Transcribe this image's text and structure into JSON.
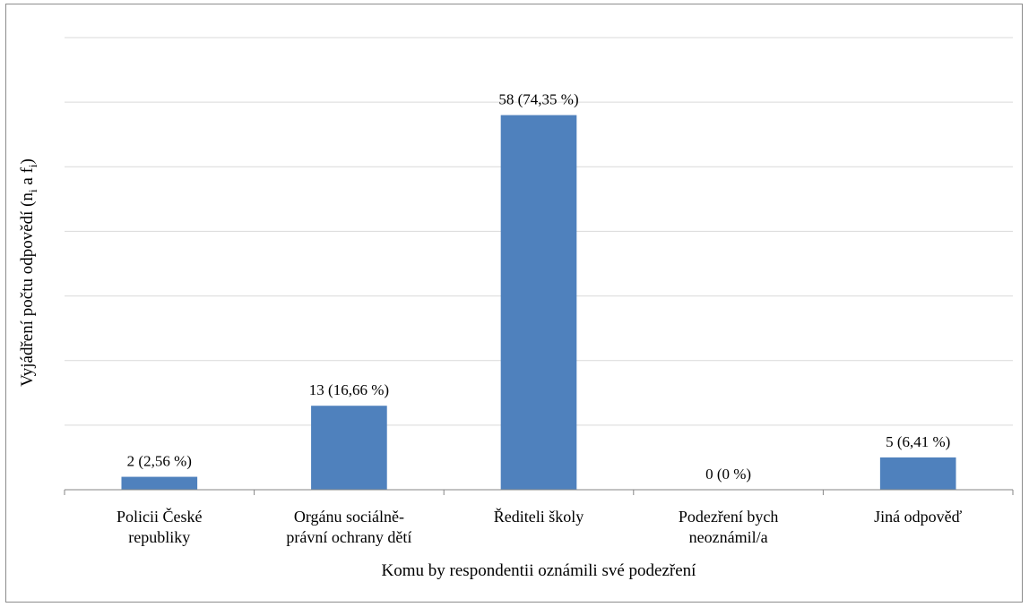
{
  "chart_data": {
    "type": "bar",
    "categories": [
      [
        "Policii České",
        "republiky"
      ],
      [
        "Orgánu sociálně-",
        "právní ochrany dětí"
      ],
      [
        "Řediteli školy"
      ],
      [
        "Podezření bych",
        "neoznámil/a"
      ],
      [
        "Jiná odpověď"
      ]
    ],
    "values": [
      2,
      13,
      58,
      0,
      5
    ],
    "data_labels": [
      "2 (2,56 %)",
      "13 (16,66 %)",
      "58 (74,35 %)",
      "0 (0 %)",
      "5 (6,41 %)"
    ],
    "title": "",
    "xlabel": "Komu by respondentii oznámili své podezření",
    "ylabel": {
      "main": "Vyjádření počtu odpovědí (n",
      "sub1": "i",
      "mid": " a f",
      "sub2": "i",
      "end": ")"
    },
    "ylim": [
      0,
      70
    ],
    "ytick_step": 10,
    "grid": true,
    "show_ytick_labels": false,
    "legend": "none",
    "bar_color": "#4f81bd",
    "grid_color": "#d9d9d9",
    "axis_color": "#868686"
  }
}
